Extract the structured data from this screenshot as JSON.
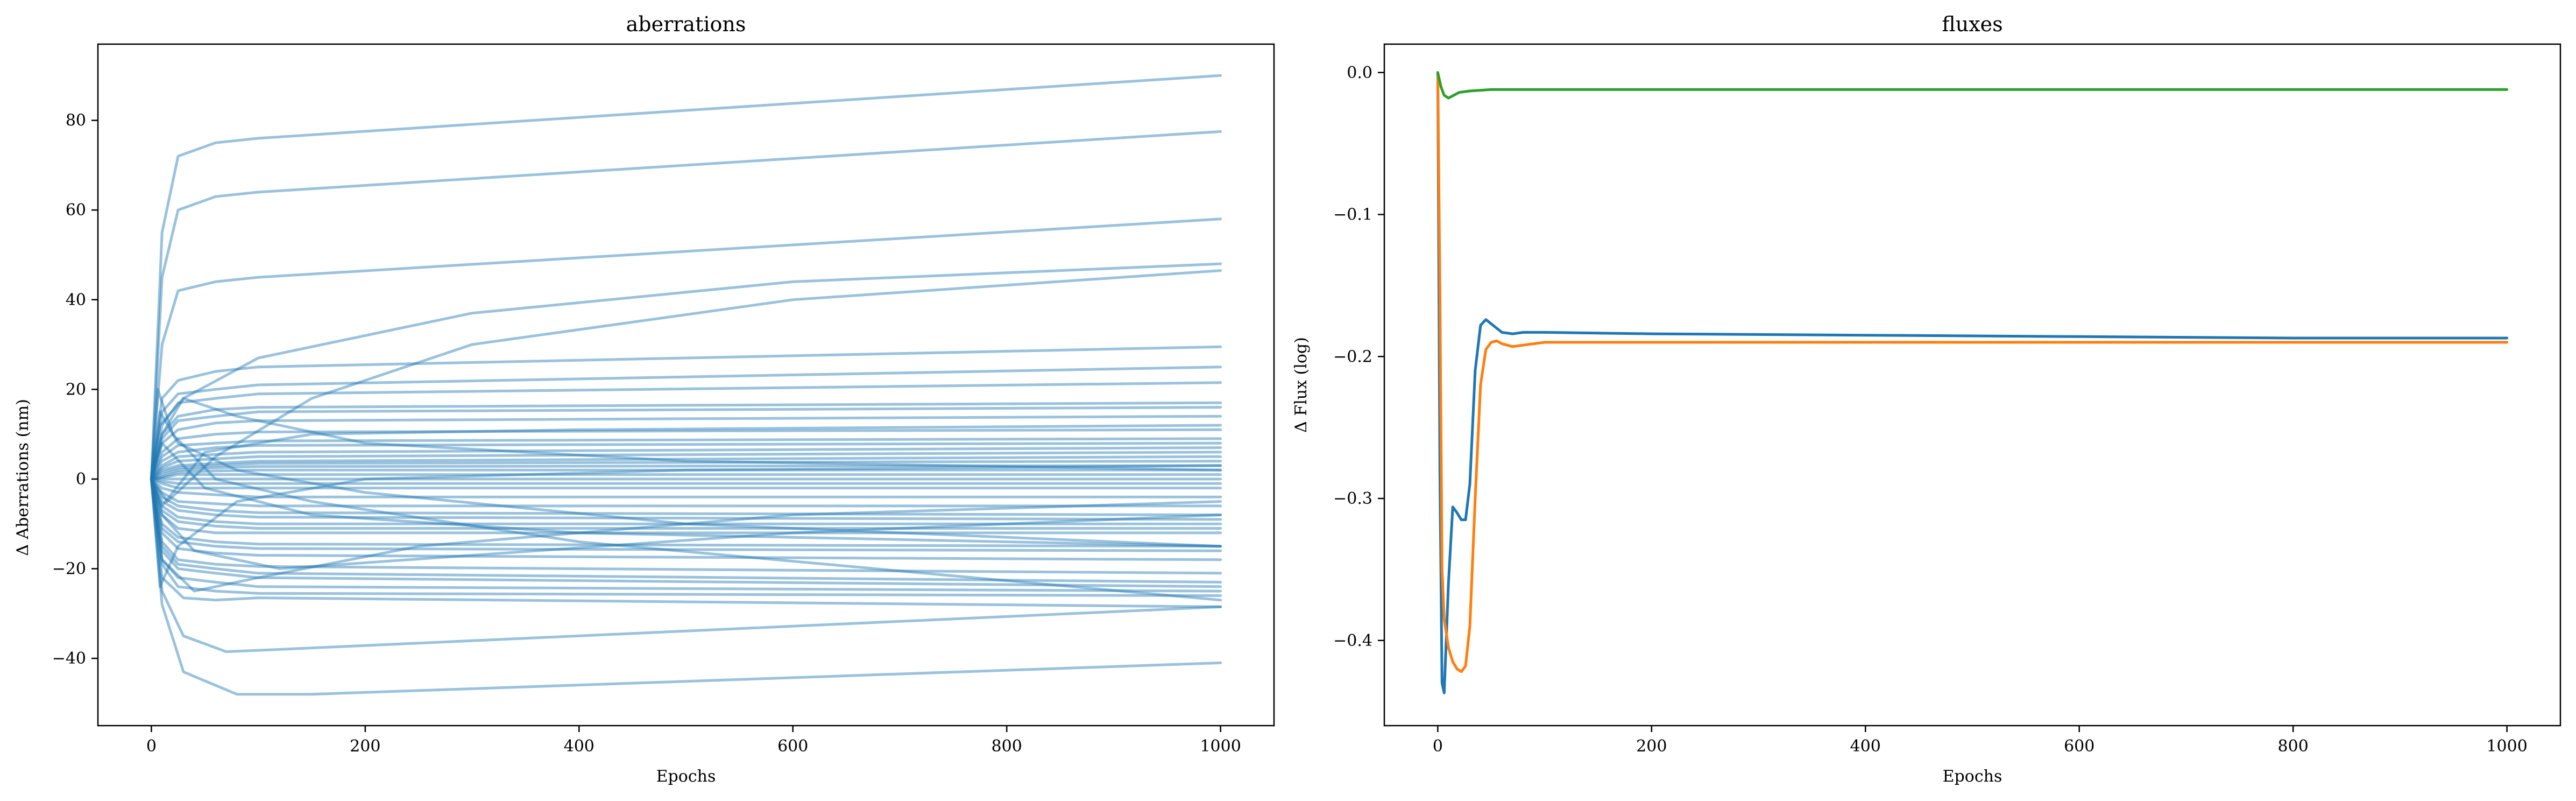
{
  "chart_data": [
    {
      "type": "line",
      "title": "aberrations",
      "xlabel": "Epochs",
      "ylabel": "Δ Aberrations (nm)",
      "xlim": [
        -50,
        1050
      ],
      "ylim": [
        -55,
        97
      ],
      "xticks": [
        0,
        200,
        400,
        600,
        800,
        1000
      ],
      "yticks": [
        -40,
        -20,
        0,
        20,
        40,
        60,
        80
      ],
      "color": "#1f77b4",
      "line_opacity": 0.45,
      "grid": false,
      "series": [
        {
          "x": [
            0,
            10,
            25,
            60,
            100,
            1000
          ],
          "y": [
            0,
            55,
            72,
            75,
            76,
            90
          ]
        },
        {
          "x": [
            0,
            10,
            25,
            60,
            100,
            1000
          ],
          "y": [
            0,
            45,
            60,
            63,
            64,
            77.5
          ]
        },
        {
          "x": [
            0,
            10,
            25,
            60,
            100,
            1000
          ],
          "y": [
            0,
            30,
            42,
            44,
            45,
            58
          ]
        },
        {
          "x": [
            0,
            10,
            30,
            100,
            300,
            600,
            1000
          ],
          "y": [
            0,
            10,
            18,
            27,
            37,
            44,
            48
          ]
        },
        {
          "x": [
            0,
            15,
            60,
            150,
            300,
            600,
            1000
          ],
          "y": [
            0,
            -5,
            5,
            18,
            30,
            40,
            46.5
          ]
        },
        {
          "x": [
            0,
            10,
            25,
            60,
            100,
            1000
          ],
          "y": [
            0,
            18,
            22,
            24,
            25,
            29.5
          ]
        },
        {
          "x": [
            0,
            10,
            25,
            60,
            100,
            1000
          ],
          "y": [
            0,
            15,
            19,
            20,
            21,
            25
          ]
        },
        {
          "x": [
            0,
            10,
            25,
            60,
            100,
            1000
          ],
          "y": [
            0,
            12,
            17,
            18,
            19,
            21.5
          ]
        },
        {
          "x": [
            0,
            10,
            25,
            60,
            100,
            1000
          ],
          "y": [
            0,
            10,
            14,
            15.5,
            16,
            17
          ]
        },
        {
          "x": [
            0,
            10,
            25,
            60,
            100,
            1000
          ],
          "y": [
            0,
            9,
            13,
            14,
            15,
            16
          ]
        },
        {
          "x": [
            0,
            10,
            25,
            60,
            100,
            1000
          ],
          "y": [
            0,
            8,
            11,
            12.5,
            13,
            14
          ]
        },
        {
          "x": [
            0,
            10,
            25,
            60,
            100,
            1000
          ],
          "y": [
            0,
            6,
            9,
            10,
            10.5,
            11
          ]
        },
        {
          "x": [
            0,
            10,
            25,
            60,
            100,
            1000
          ],
          "y": [
            0,
            5,
            7.5,
            8,
            8.5,
            9
          ]
        },
        {
          "x": [
            0,
            10,
            25,
            60,
            100,
            1000
          ],
          "y": [
            0,
            4,
            6,
            7,
            7.5,
            8
          ]
        },
        {
          "x": [
            0,
            10,
            25,
            60,
            100,
            1000
          ],
          "y": [
            0,
            3,
            5,
            5.5,
            6,
            7
          ]
        },
        {
          "x": [
            0,
            10,
            25,
            60,
            100,
            1000
          ],
          "y": [
            0,
            2.5,
            4,
            4.5,
            5,
            6
          ]
        },
        {
          "x": [
            0,
            10,
            25,
            60,
            100,
            1000
          ],
          "y": [
            0,
            2,
            3,
            3.5,
            4,
            5
          ]
        },
        {
          "x": [
            0,
            10,
            25,
            60,
            100,
            1000
          ],
          "y": [
            0,
            1.5,
            2.5,
            3,
            3.5,
            4
          ]
        },
        {
          "x": [
            0,
            10,
            25,
            60,
            100,
            1000
          ],
          "y": [
            0,
            1,
            2,
            2.5,
            2.8,
            3
          ]
        },
        {
          "x": [
            0,
            10,
            25,
            60,
            100,
            1000
          ],
          "y": [
            0,
            0.5,
            1.5,
            1.8,
            2,
            2
          ]
        },
        {
          "x": [
            0,
            10,
            25,
            60,
            100,
            1000
          ],
          "y": [
            0,
            0.3,
            1,
            1,
            1,
            1
          ]
        },
        {
          "x": [
            0,
            10,
            25,
            60,
            100,
            1000
          ],
          "y": [
            0,
            0,
            0,
            0,
            0,
            0
          ]
        },
        {
          "x": [
            0,
            10,
            25,
            60,
            100,
            1000
          ],
          "y": [
            0,
            -0.5,
            -1,
            -1,
            -1,
            -1
          ]
        },
        {
          "x": [
            0,
            10,
            25,
            60,
            100,
            1000
          ],
          "y": [
            0,
            -1,
            -2,
            -2,
            -2,
            -2
          ]
        },
        {
          "x": [
            0,
            10,
            25,
            60,
            100,
            1000
          ],
          "y": [
            0,
            -2,
            -3,
            -3.5,
            -4,
            -4
          ]
        },
        {
          "x": [
            0,
            10,
            25,
            60,
            100,
            1000
          ],
          "y": [
            0,
            -3,
            -5,
            -5.5,
            -6,
            -6
          ]
        },
        {
          "x": [
            0,
            10,
            25,
            60,
            100,
            1000
          ],
          "y": [
            0,
            -4,
            -6,
            -7,
            -7.5,
            -8
          ]
        },
        {
          "x": [
            0,
            10,
            25,
            60,
            100,
            1000
          ],
          "y": [
            0,
            -5,
            -7,
            -8,
            -8.5,
            -9
          ]
        },
        {
          "x": [
            0,
            10,
            25,
            60,
            100,
            1000
          ],
          "y": [
            0,
            -6,
            -8.5,
            -9.5,
            -10,
            -10
          ]
        },
        {
          "x": [
            0,
            10,
            25,
            60,
            100,
            1000
          ],
          "y": [
            0,
            -7,
            -9.5,
            -10.5,
            -11,
            -11
          ]
        },
        {
          "x": [
            0,
            10,
            25,
            60,
            100,
            1000
          ],
          "y": [
            0,
            -8,
            -11,
            -12,
            -12,
            -12
          ]
        },
        {
          "x": [
            0,
            10,
            25,
            60,
            100,
            1000
          ],
          "y": [
            0,
            -10,
            -13,
            -14,
            -14.5,
            -15
          ]
        },
        {
          "x": [
            0,
            10,
            25,
            60,
            100,
            1000
          ],
          "y": [
            0,
            -11,
            -14,
            -15,
            -15.5,
            -16
          ]
        },
        {
          "x": [
            0,
            10,
            25,
            60,
            100,
            1000
          ],
          "y": [
            0,
            -12,
            -15.5,
            -16.5,
            -17,
            -18
          ]
        },
        {
          "x": [
            0,
            10,
            25,
            60,
            100,
            1000
          ],
          "y": [
            0,
            -14,
            -18,
            -19,
            -19.5,
            -21
          ]
        },
        {
          "x": [
            0,
            10,
            25,
            60,
            100,
            1000
          ],
          "y": [
            0,
            -15,
            -19,
            -20,
            -21,
            -23
          ]
        },
        {
          "x": [
            0,
            10,
            25,
            60,
            100,
            1000
          ],
          "y": [
            0,
            -16,
            -20,
            -21,
            -22,
            -24
          ]
        },
        {
          "x": [
            0,
            10,
            25,
            60,
            100,
            1000
          ],
          "y": [
            0,
            -18,
            -22,
            -23,
            -24,
            -25
          ]
        },
        {
          "x": [
            0,
            10,
            25,
            60,
            100,
            1000
          ],
          "y": [
            0,
            -19,
            -24,
            -25,
            -25.5,
            -26
          ]
        },
        {
          "x": [
            0,
            10,
            30,
            60,
            100,
            1000
          ],
          "y": [
            0,
            -22,
            -26.5,
            -27,
            -26.5,
            -28.5
          ]
        },
        {
          "x": [
            0,
            10,
            30,
            70,
            120,
            1000
          ],
          "y": [
            0,
            -25,
            -35,
            -38.5,
            -38,
            -28.5
          ]
        },
        {
          "x": [
            0,
            10,
            30,
            80,
            150,
            1000
          ],
          "y": [
            0,
            -28,
            -43,
            -48,
            -48,
            -41
          ]
        },
        {
          "x": [
            0,
            6,
            20,
            60,
            150,
            400,
            1000
          ],
          "y": [
            0,
            20,
            10,
            0,
            -5,
            -14,
            -27
          ]
        },
        {
          "x": [
            0,
            8,
            25,
            80,
            200,
            500,
            1000
          ],
          "y": [
            0,
            -24,
            -15,
            -5,
            0,
            2,
            3
          ]
        },
        {
          "x": [
            0,
            8,
            25,
            80,
            200,
            500,
            1000
          ],
          "y": [
            0,
            15,
            8,
            2,
            -3,
            -10,
            -15
          ]
        },
        {
          "x": [
            0,
            10,
            40,
            100,
            250,
            600,
            1000
          ],
          "y": [
            0,
            -18,
            -25,
            -22,
            -15,
            -8,
            -5
          ]
        },
        {
          "x": [
            0,
            8,
            30,
            80,
            200,
            500,
            1000
          ],
          "y": [
            0,
            12,
            18,
            14,
            8,
            4,
            2
          ]
        },
        {
          "x": [
            0,
            10,
            40,
            120,
            300,
            600,
            1000
          ],
          "y": [
            0,
            -8,
            -16,
            -20,
            -17,
            -12,
            -8
          ]
        },
        {
          "x": [
            0,
            10,
            50,
            150,
            400,
            1000
          ],
          "y": [
            0,
            8,
            -2,
            -8,
            -12,
            -15
          ]
        },
        {
          "x": [
            0,
            10,
            50,
            150,
            400,
            1000
          ],
          "y": [
            0,
            -6,
            6,
            10,
            11,
            12
          ]
        }
      ]
    },
    {
      "type": "line",
      "title": "fluxes",
      "xlabel": "Epochs",
      "ylabel": "Δ Flux (log)",
      "xlim": [
        -50,
        1050
      ],
      "ylim": [
        -0.46,
        0.02
      ],
      "xticks": [
        0,
        200,
        400,
        600,
        800,
        1000
      ],
      "yticks": [
        0.0,
        -0.1,
        -0.2,
        -0.3,
        -0.4
      ],
      "ytick_labels": [
        "0.0",
        "−0.1",
        "−0.2",
        "−0.3",
        "−0.4"
      ],
      "grid": false,
      "series": [
        {
          "color": "#1f77b4",
          "x": [
            0,
            2,
            4,
            6,
            10,
            14,
            18,
            22,
            26,
            30,
            35,
            40,
            45,
            50,
            60,
            70,
            80,
            100,
            200,
            400,
            600,
            800,
            1000
          ],
          "y": [
            0,
            -0.28,
            -0.43,
            -0.437,
            -0.36,
            -0.306,
            -0.31,
            -0.315,
            -0.315,
            -0.29,
            -0.21,
            -0.178,
            -0.174,
            -0.177,
            -0.183,
            -0.184,
            -0.183,
            -0.183,
            -0.184,
            -0.185,
            -0.186,
            -0.187,
            -0.187
          ]
        },
        {
          "color": "#ff7f0e",
          "x": [
            0,
            2,
            4,
            6,
            8,
            10,
            14,
            18,
            22,
            26,
            30,
            35,
            40,
            45,
            50,
            55,
            60,
            70,
            80,
            100,
            200,
            400,
            600,
            800,
            1000
          ],
          "y": [
            0,
            -0.15,
            -0.35,
            -0.385,
            -0.395,
            -0.405,
            -0.415,
            -0.42,
            -0.422,
            -0.418,
            -0.39,
            -0.3,
            -0.22,
            -0.195,
            -0.19,
            -0.189,
            -0.191,
            -0.193,
            -0.192,
            -0.19,
            -0.19,
            -0.19,
            -0.19,
            -0.19,
            -0.19
          ]
        },
        {
          "color": "#2ca02c",
          "x": [
            0,
            3,
            6,
            10,
            15,
            20,
            30,
            50,
            100,
            300,
            600,
            1000
          ],
          "y": [
            0,
            -0.01,
            -0.016,
            -0.018,
            -0.016,
            -0.014,
            -0.013,
            -0.012,
            -0.012,
            -0.012,
            -0.012,
            -0.012
          ]
        }
      ]
    }
  ]
}
